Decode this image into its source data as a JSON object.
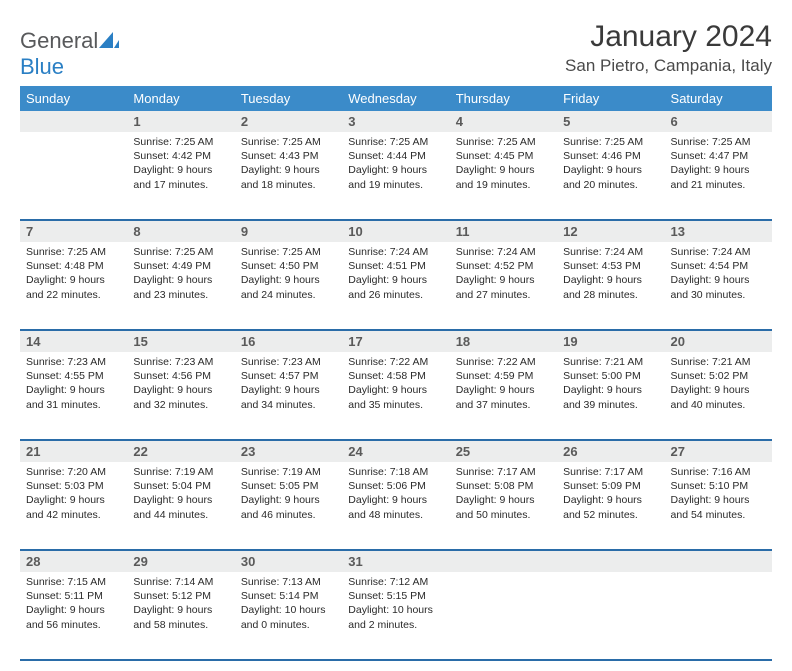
{
  "brand": {
    "part1": "General",
    "part2": "Blue"
  },
  "title": "January 2024",
  "location": "San Pietro, Campania, Italy",
  "colors": {
    "header_bg": "#3b8bc9",
    "header_text": "#ffffff",
    "daynum_bg": "#eceded",
    "daynum_text": "#5a5a5a",
    "row_border": "#2a6ca8",
    "body_text": "#2a2a2a",
    "title_text": "#3a3a3a",
    "logo_gray": "#58595b",
    "logo_blue": "#2a7fc4"
  },
  "dayHeaders": [
    "Sunday",
    "Monday",
    "Tuesday",
    "Wednesday",
    "Thursday",
    "Friday",
    "Saturday"
  ],
  "weeks": [
    [
      {
        "n": "",
        "lines": []
      },
      {
        "n": "1",
        "lines": [
          "Sunrise: 7:25 AM",
          "Sunset: 4:42 PM",
          "Daylight: 9 hours",
          "and 17 minutes."
        ]
      },
      {
        "n": "2",
        "lines": [
          "Sunrise: 7:25 AM",
          "Sunset: 4:43 PM",
          "Daylight: 9 hours",
          "and 18 minutes."
        ]
      },
      {
        "n": "3",
        "lines": [
          "Sunrise: 7:25 AM",
          "Sunset: 4:44 PM",
          "Daylight: 9 hours",
          "and 19 minutes."
        ]
      },
      {
        "n": "4",
        "lines": [
          "Sunrise: 7:25 AM",
          "Sunset: 4:45 PM",
          "Daylight: 9 hours",
          "and 19 minutes."
        ]
      },
      {
        "n": "5",
        "lines": [
          "Sunrise: 7:25 AM",
          "Sunset: 4:46 PM",
          "Daylight: 9 hours",
          "and 20 minutes."
        ]
      },
      {
        "n": "6",
        "lines": [
          "Sunrise: 7:25 AM",
          "Sunset: 4:47 PM",
          "Daylight: 9 hours",
          "and 21 minutes."
        ]
      }
    ],
    [
      {
        "n": "7",
        "lines": [
          "Sunrise: 7:25 AM",
          "Sunset: 4:48 PM",
          "Daylight: 9 hours",
          "and 22 minutes."
        ]
      },
      {
        "n": "8",
        "lines": [
          "Sunrise: 7:25 AM",
          "Sunset: 4:49 PM",
          "Daylight: 9 hours",
          "and 23 minutes."
        ]
      },
      {
        "n": "9",
        "lines": [
          "Sunrise: 7:25 AM",
          "Sunset: 4:50 PM",
          "Daylight: 9 hours",
          "and 24 minutes."
        ]
      },
      {
        "n": "10",
        "lines": [
          "Sunrise: 7:24 AM",
          "Sunset: 4:51 PM",
          "Daylight: 9 hours",
          "and 26 minutes."
        ]
      },
      {
        "n": "11",
        "lines": [
          "Sunrise: 7:24 AM",
          "Sunset: 4:52 PM",
          "Daylight: 9 hours",
          "and 27 minutes."
        ]
      },
      {
        "n": "12",
        "lines": [
          "Sunrise: 7:24 AM",
          "Sunset: 4:53 PM",
          "Daylight: 9 hours",
          "and 28 minutes."
        ]
      },
      {
        "n": "13",
        "lines": [
          "Sunrise: 7:24 AM",
          "Sunset: 4:54 PM",
          "Daylight: 9 hours",
          "and 30 minutes."
        ]
      }
    ],
    [
      {
        "n": "14",
        "lines": [
          "Sunrise: 7:23 AM",
          "Sunset: 4:55 PM",
          "Daylight: 9 hours",
          "and 31 minutes."
        ]
      },
      {
        "n": "15",
        "lines": [
          "Sunrise: 7:23 AM",
          "Sunset: 4:56 PM",
          "Daylight: 9 hours",
          "and 32 minutes."
        ]
      },
      {
        "n": "16",
        "lines": [
          "Sunrise: 7:23 AM",
          "Sunset: 4:57 PM",
          "Daylight: 9 hours",
          "and 34 minutes."
        ]
      },
      {
        "n": "17",
        "lines": [
          "Sunrise: 7:22 AM",
          "Sunset: 4:58 PM",
          "Daylight: 9 hours",
          "and 35 minutes."
        ]
      },
      {
        "n": "18",
        "lines": [
          "Sunrise: 7:22 AM",
          "Sunset: 4:59 PM",
          "Daylight: 9 hours",
          "and 37 minutes."
        ]
      },
      {
        "n": "19",
        "lines": [
          "Sunrise: 7:21 AM",
          "Sunset: 5:00 PM",
          "Daylight: 9 hours",
          "and 39 minutes."
        ]
      },
      {
        "n": "20",
        "lines": [
          "Sunrise: 7:21 AM",
          "Sunset: 5:02 PM",
          "Daylight: 9 hours",
          "and 40 minutes."
        ]
      }
    ],
    [
      {
        "n": "21",
        "lines": [
          "Sunrise: 7:20 AM",
          "Sunset: 5:03 PM",
          "Daylight: 9 hours",
          "and 42 minutes."
        ]
      },
      {
        "n": "22",
        "lines": [
          "Sunrise: 7:19 AM",
          "Sunset: 5:04 PM",
          "Daylight: 9 hours",
          "and 44 minutes."
        ]
      },
      {
        "n": "23",
        "lines": [
          "Sunrise: 7:19 AM",
          "Sunset: 5:05 PM",
          "Daylight: 9 hours",
          "and 46 minutes."
        ]
      },
      {
        "n": "24",
        "lines": [
          "Sunrise: 7:18 AM",
          "Sunset: 5:06 PM",
          "Daylight: 9 hours",
          "and 48 minutes."
        ]
      },
      {
        "n": "25",
        "lines": [
          "Sunrise: 7:17 AM",
          "Sunset: 5:08 PM",
          "Daylight: 9 hours",
          "and 50 minutes."
        ]
      },
      {
        "n": "26",
        "lines": [
          "Sunrise: 7:17 AM",
          "Sunset: 5:09 PM",
          "Daylight: 9 hours",
          "and 52 minutes."
        ]
      },
      {
        "n": "27",
        "lines": [
          "Sunrise: 7:16 AM",
          "Sunset: 5:10 PM",
          "Daylight: 9 hours",
          "and 54 minutes."
        ]
      }
    ],
    [
      {
        "n": "28",
        "lines": [
          "Sunrise: 7:15 AM",
          "Sunset: 5:11 PM",
          "Daylight: 9 hours",
          "and 56 minutes."
        ]
      },
      {
        "n": "29",
        "lines": [
          "Sunrise: 7:14 AM",
          "Sunset: 5:12 PM",
          "Daylight: 9 hours",
          "and 58 minutes."
        ]
      },
      {
        "n": "30",
        "lines": [
          "Sunrise: 7:13 AM",
          "Sunset: 5:14 PM",
          "Daylight: 10 hours",
          "and 0 minutes."
        ]
      },
      {
        "n": "31",
        "lines": [
          "Sunrise: 7:12 AM",
          "Sunset: 5:15 PM",
          "Daylight: 10 hours",
          "and 2 minutes."
        ]
      },
      {
        "n": "",
        "lines": []
      },
      {
        "n": "",
        "lines": []
      },
      {
        "n": "",
        "lines": []
      }
    ]
  ]
}
